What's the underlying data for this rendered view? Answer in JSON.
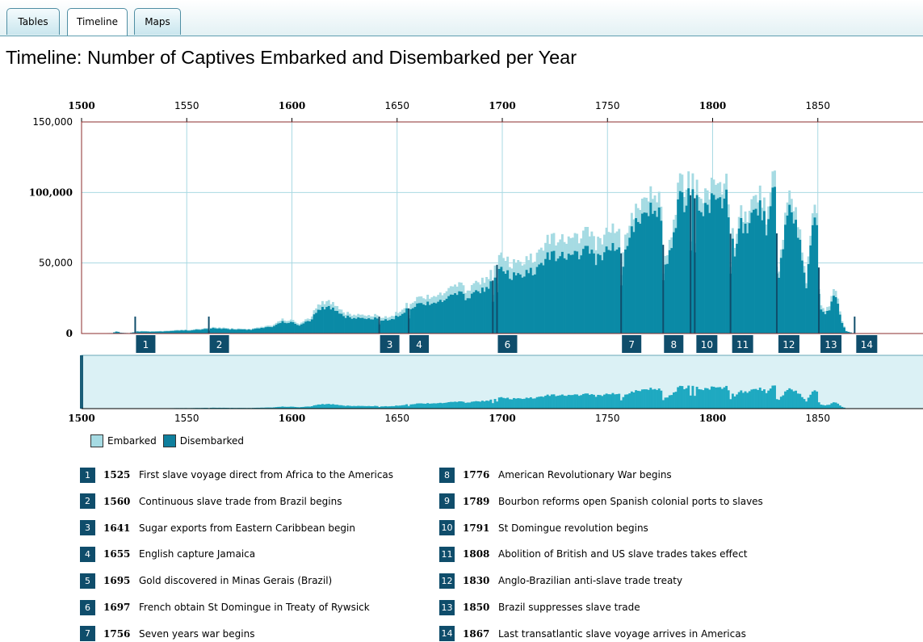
{
  "tabs": [
    {
      "label": "Tables",
      "active": false
    },
    {
      "label": "Timeline",
      "active": true
    },
    {
      "label": "Maps",
      "active": false
    }
  ],
  "title": "Timeline: Number of Captives Embarked and Disembarked per Year",
  "colors": {
    "embarked": "#a6dbe3",
    "disembarked": "#0a8aa6",
    "overview": "#1fa9c1",
    "overview_bg": "#dbf1f5",
    "marker": "#0f4d6b",
    "grid": "#a9d9e3",
    "frame": "#8b2d2d"
  },
  "legend": [
    {
      "label": "Embarked",
      "color": "#a6dbe3"
    },
    {
      "label": "Disembarked",
      "color": "#0f7f9d"
    }
  ],
  "chart_data": {
    "type": "bar",
    "title": "Timeline: Number of Captives Embarked and Disembarked per Year",
    "xlim": [
      1500,
      1900
    ],
    "ylim": [
      0,
      150000
    ],
    "x_ticks": [
      {
        "value": 1500,
        "label": "1500",
        "bold": true
      },
      {
        "value": 1550,
        "label": "1550",
        "bold": false
      },
      {
        "value": 1600,
        "label": "1600",
        "bold": true
      },
      {
        "value": 1650,
        "label": "1650",
        "bold": false
      },
      {
        "value": 1700,
        "label": "1700",
        "bold": true
      },
      {
        "value": 1750,
        "label": "1750",
        "bold": false
      },
      {
        "value": 1800,
        "label": "1800",
        "bold": true
      },
      {
        "value": 1850,
        "label": "1850",
        "bold": false
      }
    ],
    "y_ticks": [
      {
        "value": 0,
        "label": "0",
        "bold": true
      },
      {
        "value": 50000,
        "label": "50,000",
        "bold": false
      },
      {
        "value": 100000,
        "label": "100,000",
        "bold": true
      },
      {
        "value": 150000,
        "label": "150,000",
        "bold": false
      }
    ],
    "grid": true,
    "legend_position": "bottom-left",
    "series_names": [
      "Embarked",
      "Disembarked"
    ],
    "embarked_anchors": [
      [
        1501,
        0
      ],
      [
        1514,
        400
      ],
      [
        1516,
        1800
      ],
      [
        1518,
        700
      ],
      [
        1522,
        300
      ],
      [
        1526,
        1800
      ],
      [
        1534,
        1600
      ],
      [
        1539,
        1900
      ],
      [
        1545,
        2600
      ],
      [
        1551,
        2700
      ],
      [
        1558,
        3600
      ],
      [
        1562,
        4500
      ],
      [
        1570,
        3600
      ],
      [
        1580,
        3200
      ],
      [
        1590,
        5900
      ],
      [
        1595,
        9900
      ],
      [
        1600,
        9000
      ],
      [
        1603,
        7200
      ],
      [
        1608,
        10800
      ],
      [
        1612,
        19800
      ],
      [
        1616,
        22500
      ],
      [
        1620,
        20700
      ],
      [
        1625,
        14400
      ],
      [
        1630,
        13500
      ],
      [
        1635,
        12600
      ],
      [
        1640,
        13500
      ],
      [
        1643,
        10800
      ],
      [
        1648,
        13500
      ],
      [
        1652,
        18000
      ],
      [
        1655,
        22500
      ],
      [
        1660,
        25200
      ],
      [
        1665,
        27000
      ],
      [
        1670,
        27000
      ],
      [
        1675,
        31500
      ],
      [
        1678,
        35100
      ],
      [
        1682,
        31500
      ],
      [
        1686,
        34200
      ],
      [
        1690,
        37800
      ],
      [
        1695,
        45000
      ],
      [
        1697,
        55800
      ],
      [
        1700,
        51300
      ],
      [
        1705,
        48600
      ],
      [
        1710,
        49500
      ],
      [
        1715,
        54000
      ],
      [
        1720,
        64800
      ],
      [
        1725,
        67500
      ],
      [
        1730,
        63000
      ],
      [
        1735,
        69300
      ],
      [
        1740,
        70200
      ],
      [
        1745,
        63000
      ],
      [
        1750,
        73800
      ],
      [
        1755,
        75600
      ],
      [
        1757,
        60300
      ],
      [
        1760,
        81000
      ],
      [
        1764,
        93600
      ],
      [
        1768,
        90900
      ],
      [
        1770,
        98100
      ],
      [
        1772,
        91800
      ],
      [
        1775,
        94500
      ],
      [
        1777,
        54000
      ],
      [
        1780,
        72900
      ],
      [
        1783,
        101700
      ],
      [
        1785,
        110700
      ],
      [
        1787,
        100800
      ],
      [
        1789,
        114300
      ],
      [
        1791,
        106200
      ],
      [
        1793,
        99000
      ],
      [
        1796,
        102600
      ],
      [
        1799,
        101700
      ],
      [
        1802,
        104400
      ],
      [
        1804,
        102600
      ],
      [
        1806,
        115200
      ],
      [
        1808,
        84600
      ],
      [
        1810,
        63000
      ],
      [
        1813,
        89100
      ],
      [
        1816,
        79200
      ],
      [
        1819,
        93600
      ],
      [
        1822,
        106200
      ],
      [
        1825,
        80100
      ],
      [
        1827,
        96300
      ],
      [
        1829,
        117900
      ],
      [
        1831,
        43200
      ],
      [
        1834,
        81000
      ],
      [
        1836,
        101700
      ],
      [
        1839,
        90000
      ],
      [
        1842,
        58500
      ],
      [
        1844,
        37800
      ],
      [
        1847,
        85500
      ],
      [
        1849,
        88200
      ],
      [
        1851,
        21600
      ],
      [
        1853,
        16200
      ],
      [
        1855,
        20700
      ],
      [
        1857,
        34200
      ],
      [
        1859,
        24300
      ],
      [
        1861,
        9000
      ],
      [
        1863,
        1800
      ],
      [
        1866,
        500
      ]
    ],
    "disembarked_anchors": [
      [
        1501,
        0
      ],
      [
        1514,
        300
      ],
      [
        1516,
        1400
      ],
      [
        1518,
        600
      ],
      [
        1522,
        200
      ],
      [
        1526,
        1400
      ],
      [
        1534,
        1300
      ],
      [
        1539,
        1500
      ],
      [
        1545,
        2100
      ],
      [
        1551,
        2200
      ],
      [
        1558,
        3000
      ],
      [
        1562,
        3800
      ],
      [
        1570,
        3000
      ],
      [
        1580,
        2700
      ],
      [
        1590,
        4900
      ],
      [
        1595,
        8200
      ],
      [
        1600,
        7500
      ],
      [
        1603,
        6000
      ],
      [
        1608,
        9000
      ],
      [
        1612,
        16200
      ],
      [
        1616,
        18500
      ],
      [
        1620,
        17000
      ],
      [
        1625,
        11900
      ],
      [
        1630,
        11100
      ],
      [
        1635,
        10400
      ],
      [
        1640,
        11100
      ],
      [
        1643,
        8900
      ],
      [
        1648,
        11100
      ],
      [
        1652,
        14800
      ],
      [
        1655,
        18500
      ],
      [
        1660,
        20700
      ],
      [
        1665,
        22200
      ],
      [
        1670,
        22200
      ],
      [
        1675,
        25900
      ],
      [
        1678,
        28900
      ],
      [
        1682,
        25900
      ],
      [
        1686,
        28100
      ],
      [
        1690,
        31100
      ],
      [
        1695,
        37000
      ],
      [
        1697,
        45900
      ],
      [
        1700,
        42200
      ],
      [
        1705,
        40000
      ],
      [
        1710,
        40700
      ],
      [
        1715,
        44400
      ],
      [
        1720,
        53300
      ],
      [
        1725,
        55500
      ],
      [
        1730,
        51800
      ],
      [
        1735,
        57000
      ],
      [
        1740,
        57700
      ],
      [
        1745,
        51800
      ],
      [
        1750,
        60700
      ],
      [
        1755,
        62200
      ],
      [
        1757,
        49600
      ],
      [
        1760,
        72000
      ],
      [
        1764,
        83200
      ],
      [
        1768,
        80800
      ],
      [
        1770,
        87200
      ],
      [
        1772,
        81600
      ],
      [
        1775,
        84000
      ],
      [
        1777,
        48000
      ],
      [
        1780,
        64800
      ],
      [
        1783,
        90400
      ],
      [
        1785,
        98400
      ],
      [
        1787,
        89600
      ],
      [
        1789,
        103000
      ],
      [
        1791,
        95600
      ],
      [
        1793,
        89100
      ],
      [
        1796,
        92300
      ],
      [
        1799,
        91500
      ],
      [
        1802,
        94000
      ],
      [
        1804,
        92300
      ],
      [
        1806,
        103700
      ],
      [
        1808,
        76100
      ],
      [
        1810,
        56700
      ],
      [
        1813,
        80200
      ],
      [
        1816,
        71300
      ],
      [
        1819,
        84200
      ],
      [
        1822,
        95600
      ],
      [
        1825,
        72100
      ],
      [
        1827,
        86700
      ],
      [
        1829,
        106100
      ],
      [
        1831,
        38900
      ],
      [
        1834,
        72900
      ],
      [
        1836,
        91500
      ],
      [
        1839,
        81000
      ],
      [
        1842,
        52700
      ],
      [
        1844,
        34000
      ],
      [
        1847,
        77000
      ],
      [
        1849,
        79400
      ],
      [
        1851,
        18400
      ],
      [
        1853,
        13800
      ],
      [
        1855,
        17600
      ],
      [
        1857,
        29100
      ],
      [
        1859,
        20700
      ],
      [
        1861,
        7700
      ],
      [
        1863,
        1500
      ],
      [
        1866,
        400
      ]
    ],
    "markers": [
      {
        "label": "1",
        "year": 1525
      },
      {
        "label": "2",
        "year": 1560
      },
      {
        "label": "3",
        "year": 1641
      },
      {
        "label": "4",
        "year": 1655
      },
      {
        "label": "5",
        "year": 1695
      },
      {
        "label": "6",
        "year": 1697
      },
      {
        "label": "7",
        "year": 1756
      },
      {
        "label": "8",
        "year": 1776
      },
      {
        "label": "9",
        "year": 1789
      },
      {
        "label": "10",
        "year": 1791
      },
      {
        "label": "11",
        "year": 1808
      },
      {
        "label": "12",
        "year": 1830
      },
      {
        "label": "13",
        "year": 1850
      },
      {
        "label": "14",
        "year": 1867
      }
    ]
  },
  "events": [
    {
      "num": "1",
      "year": "1525",
      "text": "First slave voyage direct from Africa to the Americas"
    },
    {
      "num": "2",
      "year": "1560",
      "text": "Continuous slave trade from Brazil begins"
    },
    {
      "num": "3",
      "year": "1641",
      "text": "Sugar exports from Eastern Caribbean begin"
    },
    {
      "num": "4",
      "year": "1655",
      "text": "English capture Jamaica"
    },
    {
      "num": "5",
      "year": "1695",
      "text": "Gold discovered in Minas Gerais (Brazil)"
    },
    {
      "num": "6",
      "year": "1697",
      "text": "French obtain St Domingue in Treaty of Rywsick"
    },
    {
      "num": "7",
      "year": "1756",
      "text": "Seven years war begins"
    },
    {
      "num": "8",
      "year": "1776",
      "text": "American Revolutionary War begins"
    },
    {
      "num": "9",
      "year": "1789",
      "text": "Bourbon reforms open Spanish colonial ports to slaves"
    },
    {
      "num": "10",
      "year": "1791",
      "text": "St Domingue revolution begins"
    },
    {
      "num": "11",
      "year": "1808",
      "text": "Abolition of British and US slave trades takes effect"
    },
    {
      "num": "12",
      "year": "1830",
      "text": "Anglo-Brazilian anti-slave trade treaty"
    },
    {
      "num": "13",
      "year": "1850",
      "text": "Brazil suppresses slave trade"
    },
    {
      "num": "14",
      "year": "1867",
      "text": "Last transatlantic slave voyage arrives in Americas"
    }
  ]
}
